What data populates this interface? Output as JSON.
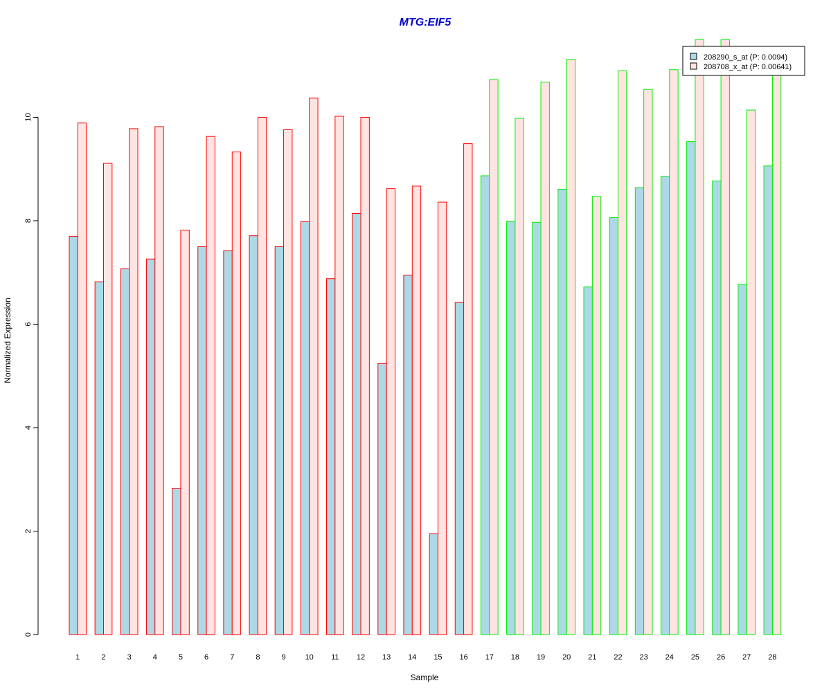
{
  "chart_data": {
    "type": "bar",
    "title": "MTG:EIF5",
    "xlabel": "Sample",
    "ylabel": "Normalized Expression",
    "ylim": [
      0,
      11.5
    ],
    "yticks": [
      0,
      2,
      4,
      6,
      8,
      10
    ],
    "grid": false,
    "legend_position": "top-right",
    "categories": [
      "1",
      "2",
      "3",
      "4",
      "5",
      "6",
      "7",
      "8",
      "9",
      "10",
      "11",
      "12",
      "13",
      "14",
      "15",
      "16",
      "17",
      "18",
      "19",
      "20",
      "21",
      "22",
      "23",
      "24",
      "25",
      "26",
      "27",
      "28"
    ],
    "series": [
      {
        "name": "208290_s_at (P: 0.0094)",
        "fill": "#add8e6",
        "values": [
          7.7,
          6.82,
          7.07,
          7.26,
          2.83,
          7.5,
          7.42,
          7.71,
          7.5,
          7.98,
          6.88,
          8.14,
          5.24,
          6.95,
          1.95,
          6.42,
          8.87,
          7.99,
          7.97,
          8.61,
          6.72,
          8.06,
          8.64,
          8.86,
          9.53,
          8.77,
          6.77,
          9.06
        ]
      },
      {
        "name": "208708_x_at (P: 0.00641)",
        "fill": "#ffe4e1",
        "values": [
          9.89,
          9.11,
          9.78,
          9.82,
          7.82,
          9.63,
          9.33,
          10.0,
          9.76,
          10.37,
          10.02,
          10.0,
          8.62,
          8.67,
          8.36,
          9.49,
          10.73,
          9.98,
          10.68,
          11.12,
          8.47,
          10.9,
          10.54,
          10.92,
          11.5,
          11.5,
          10.14,
          11.0
        ]
      }
    ],
    "group_border_colors": [
      "#ff0000",
      "#ff0000",
      "#ff0000",
      "#ff0000",
      "#ff0000",
      "#ff0000",
      "#ff0000",
      "#ff0000",
      "#ff0000",
      "#ff0000",
      "#ff0000",
      "#ff0000",
      "#ff0000",
      "#ff0000",
      "#ff0000",
      "#ff0000",
      "#00ee00",
      "#00ee00",
      "#00ee00",
      "#00ee00",
      "#00ee00",
      "#00ee00",
      "#00ee00",
      "#00ee00",
      "#00ee00",
      "#00ee00",
      "#00ee00",
      "#00ee00"
    ],
    "title_color": "#0000cd"
  }
}
